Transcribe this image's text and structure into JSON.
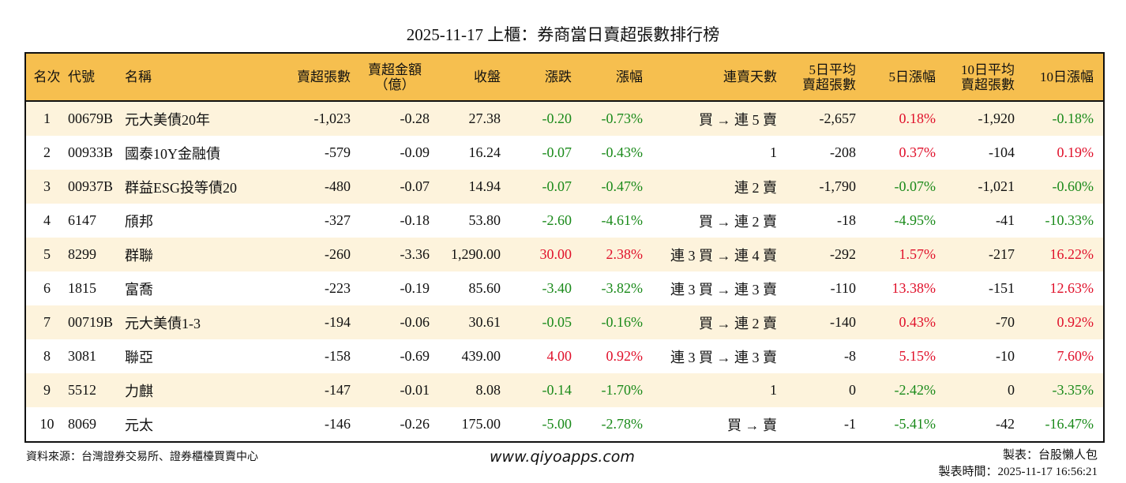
{
  "title": "2025-11-17 上櫃：券商當日賣超張數排行榜",
  "headers": [
    "名次",
    "代號",
    "名稱",
    "賣超張數",
    "賣超金額\n（億）",
    "收盤",
    "漲跌",
    "漲幅",
    "連賣天數",
    "5日平均\n賣超張數",
    "5日漲幅",
    "10日平均\n賣超張數",
    "10日漲幅"
  ],
  "colors": {
    "header_bg": "#f6bf4f",
    "row_alt_bg": "#fdf3dc",
    "up": "#e0102a",
    "down": "#1a8a1a"
  },
  "rows": [
    [
      "1",
      "00679B",
      "元大美債20年",
      "-1,023",
      "-0.28",
      "27.38",
      "-0.20",
      "-0.73%",
      "買 → 連 5 賣",
      "-2,657",
      "0.18%",
      "-1,920",
      "-0.18%"
    ],
    [
      "2",
      "00933B",
      "國泰10Y金融債",
      "-579",
      "-0.09",
      "16.24",
      "-0.07",
      "-0.43%",
      "1",
      "-208",
      "0.37%",
      "-104",
      "0.19%"
    ],
    [
      "3",
      "00937B",
      "群益ESG投等債20",
      "-480",
      "-0.07",
      "14.94",
      "-0.07",
      "-0.47%",
      "連 2 賣",
      "-1,790",
      "-0.07%",
      "-1,021",
      "-0.60%"
    ],
    [
      "4",
      "6147",
      "頎邦",
      "-327",
      "-0.18",
      "53.80",
      "-2.60",
      "-4.61%",
      "買 → 連 2 賣",
      "-18",
      "-4.95%",
      "-41",
      "-10.33%"
    ],
    [
      "5",
      "8299",
      "群聯",
      "-260",
      "-3.36",
      "1,290.00",
      "30.00",
      "2.38%",
      "連 3 買 → 連 4 賣",
      "-292",
      "1.57%",
      "-217",
      "16.22%"
    ],
    [
      "6",
      "1815",
      "富喬",
      "-223",
      "-0.19",
      "85.60",
      "-3.40",
      "-3.82%",
      "連 3 買 → 連 3 賣",
      "-110",
      "13.38%",
      "-151",
      "12.63%"
    ],
    [
      "7",
      "00719B",
      "元大美債1-3",
      "-194",
      "-0.06",
      "30.61",
      "-0.05",
      "-0.16%",
      "買 → 連 2 賣",
      "-140",
      "0.43%",
      "-70",
      "0.92%"
    ],
    [
      "8",
      "3081",
      "聯亞",
      "-158",
      "-0.69",
      "439.00",
      "4.00",
      "0.92%",
      "連 3 買 → 連 3 賣",
      "-8",
      "5.15%",
      "-10",
      "7.60%"
    ],
    [
      "9",
      "5512",
      "力麒",
      "-147",
      "-0.01",
      "8.08",
      "-0.14",
      "-1.70%",
      "1",
      "0",
      "-2.42%",
      "0",
      "-3.35%"
    ],
    [
      "10",
      "8069",
      "元太",
      "-146",
      "-0.26",
      "175.00",
      "-5.00",
      "-2.78%",
      "買 → 賣",
      "-1",
      "-5.41%",
      "-42",
      "-16.47%"
    ]
  ],
  "footer": {
    "source": "資料來源：台灣證券交易所、證券櫃檯買賣中心",
    "website": "www.qiyoapps.com",
    "maker": "製表：台股懶人包",
    "time": "製表時間：2025-11-17 16:56:21"
  }
}
